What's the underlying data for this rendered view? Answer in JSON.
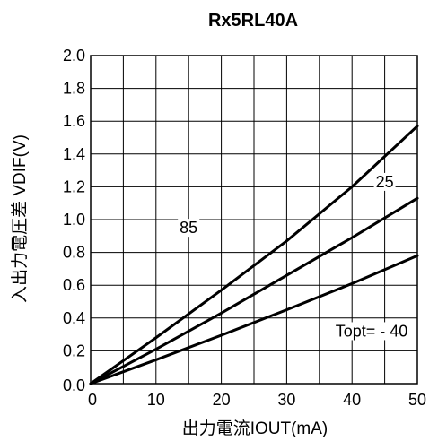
{
  "chart_data": {
    "type": "line",
    "title": "Rx5RL40A",
    "xlabel": "出力電流IOUT(mA)",
    "ylabel": "入出力電圧差 VDIF(V)",
    "xlim": [
      0,
      50
    ],
    "ylim": [
      0.0,
      2.0
    ],
    "x_ticks": [
      "0",
      "10",
      "20",
      "30",
      "40",
      "50"
    ],
    "y_ticks": [
      "0.0",
      "0.2",
      "0.4",
      "0.6",
      "0.8",
      "1.0",
      "1.2",
      "1.4",
      "1.6",
      "1.8",
      "2.0"
    ],
    "x_grid_step": 5,
    "y_grid_step": 0.2,
    "grid": true,
    "series": [
      {
        "name": "85",
        "x": [
          0,
          10,
          20,
          30,
          40,
          50
        ],
        "y": [
          0.0,
          0.28,
          0.57,
          0.87,
          1.2,
          1.57
        ]
      },
      {
        "name": "25",
        "x": [
          0,
          10,
          20,
          30,
          40,
          50
        ],
        "y": [
          0.0,
          0.21,
          0.43,
          0.66,
          0.89,
          1.13
        ]
      },
      {
        "name": "Topt= - 40",
        "x": [
          0,
          10,
          20,
          30,
          40,
          50
        ],
        "y": [
          0.0,
          0.145,
          0.295,
          0.45,
          0.61,
          0.78
        ]
      }
    ],
    "annotations": [
      {
        "text": "85",
        "x": 15,
        "y": 0.95
      },
      {
        "text": "25",
        "x": 45,
        "y": 1.23
      },
      {
        "text": "Topt= - 40",
        "x": 43,
        "y": 0.32
      }
    ]
  }
}
